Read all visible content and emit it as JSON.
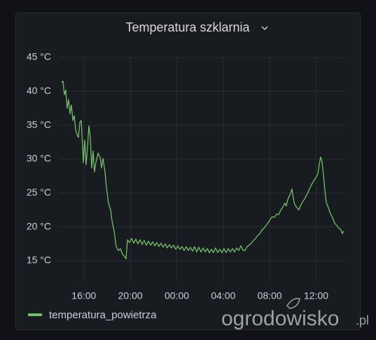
{
  "chart_data": {
    "type": "line",
    "title": "Temperatura szklarnia",
    "xlim": [
      13.9,
      38.5
    ],
    "ylim": [
      12,
      45
    ],
    "grid": true,
    "xticks": [
      {
        "value": 16,
        "label": "16:00"
      },
      {
        "value": 20,
        "label": "20:00"
      },
      {
        "value": 24,
        "label": "00:00"
      },
      {
        "value": 28,
        "label": "04:00"
      },
      {
        "value": 32,
        "label": "08:00"
      },
      {
        "value": 36,
        "label": "12:00"
      }
    ],
    "yticks": [
      {
        "value": 15,
        "label": "15 °C"
      },
      {
        "value": 20,
        "label": "20 °C"
      },
      {
        "value": 25,
        "label": "25 °C"
      },
      {
        "value": 30,
        "label": "30 °C"
      },
      {
        "value": 35,
        "label": "35 °C"
      },
      {
        "value": 40,
        "label": "40 °C"
      },
      {
        "value": 45,
        "label": "45 °C"
      }
    ],
    "x": [
      14.08,
      14.2,
      14.32,
      14.44,
      14.56,
      14.68,
      14.8,
      14.92,
      15.05,
      15.17,
      15.29,
      15.41,
      15.53,
      15.65,
      15.77,
      15.89,
      15.95,
      16.07,
      16.19,
      16.31,
      16.43,
      16.55,
      16.67,
      16.79,
      16.91,
      17.03,
      17.22,
      17.4,
      17.52,
      17.64,
      17.82,
      17.94,
      18.12,
      18.3,
      18.42,
      18.6,
      18.78,
      18.96,
      19.14,
      19.32,
      19.51,
      19.63,
      19.75,
      19.93,
      20.11,
      20.29,
      20.47,
      20.65,
      20.83,
      21.01,
      21.19,
      21.37,
      21.56,
      21.74,
      21.92,
      22.1,
      22.28,
      22.46,
      22.64,
      22.82,
      23.0,
      23.18,
      23.36,
      23.54,
      23.73,
      23.91,
      24.09,
      24.27,
      24.45,
      24.63,
      24.81,
      24.99,
      25.17,
      25.35,
      25.53,
      25.71,
      25.89,
      26.08,
      26.26,
      26.44,
      26.62,
      26.8,
      26.98,
      27.16,
      27.34,
      27.52,
      27.7,
      27.88,
      28.06,
      28.25,
      28.43,
      28.61,
      28.79,
      28.97,
      29.15,
      29.33,
      29.51,
      29.69,
      29.87,
      30.05,
      30.23,
      30.42,
      30.6,
      30.78,
      30.96,
      31.14,
      31.32,
      31.5,
      31.68,
      31.86,
      32.04,
      32.22,
      32.4,
      32.59,
      32.77,
      32.95,
      33.13,
      33.31,
      33.43,
      33.55,
      33.67,
      33.79,
      33.91,
      34.03,
      34.15,
      34.33,
      34.51,
      34.7,
      34.88,
      35.06,
      35.24,
      35.42,
      35.6,
      35.78,
      35.96,
      36.14,
      36.26,
      36.38,
      36.5,
      36.62,
      36.74,
      36.86,
      37.04,
      37.22,
      37.4,
      37.58,
      37.77,
      37.95,
      38.13,
      38.25,
      38.37
    ],
    "series": [
      {
        "name": "temperatura_powietrza",
        "color": "#73bf69",
        "values": [
          41.3,
          41.5,
          39.5,
          40.2,
          37.5,
          38.8,
          36.7,
          38.0,
          35.7,
          36.4,
          34.3,
          33.6,
          33.2,
          35.4,
          35.7,
          31.8,
          29.5,
          32.8,
          29.2,
          31.8,
          34.9,
          33.3,
          28.7,
          31.2,
          28.1,
          29.5,
          30.9,
          30.2,
          28.7,
          30.1,
          28.1,
          25.8,
          23.5,
          22.5,
          20.9,
          19.4,
          17.1,
          16.5,
          16.8,
          16.0,
          15.6,
          15.3,
          18.1,
          17.7,
          18.3,
          17.6,
          18.2,
          17.5,
          18.1,
          17.4,
          18.0,
          17.3,
          17.9,
          17.3,
          17.8,
          17.2,
          17.7,
          17.1,
          17.6,
          17.0,
          17.5,
          16.9,
          17.4,
          16.9,
          17.3,
          16.7,
          17.2,
          16.7,
          17.1,
          16.5,
          17.1,
          16.5,
          17.0,
          16.4,
          17.1,
          16.3,
          17.0,
          16.3,
          16.9,
          16.3,
          16.8,
          16.2,
          16.7,
          16.2,
          16.9,
          16.2,
          16.7,
          16.2,
          16.8,
          16.2,
          16.8,
          16.3,
          16.8,
          16.3,
          16.9,
          16.5,
          17.2,
          16.6,
          16.5,
          17.1,
          17.3,
          17.6,
          18.0,
          18.3,
          18.7,
          19.0,
          19.5,
          19.8,
          20.2,
          20.6,
          21.1,
          21.5,
          21.4,
          21.9,
          21.8,
          22.5,
          22.9,
          23.5,
          23.1,
          24.0,
          24.5,
          24.9,
          25.6,
          24.3,
          23.3,
          22.9,
          22.5,
          23.3,
          23.8,
          24.3,
          24.9,
          25.6,
          26.2,
          26.8,
          27.2,
          27.8,
          29.1,
          30.3,
          29.7,
          27.8,
          25.6,
          23.7,
          22.9,
          22.0,
          21.4,
          20.6,
          20.2,
          19.8,
          19.6,
          19.0,
          19.4
        ]
      }
    ]
  },
  "watermark": {
    "name": "ogrodowisko",
    "domain": ".pl"
  }
}
